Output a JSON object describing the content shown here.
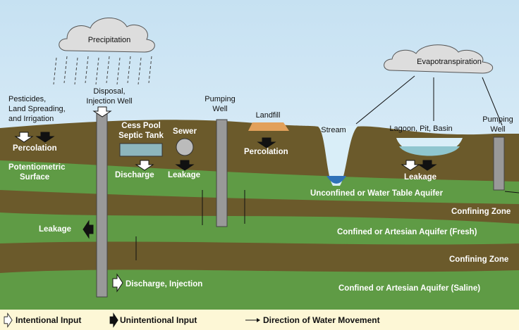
{
  "clouds": {
    "precipitation": "Precipitation",
    "evapotranspiration": "Evapotranspiration"
  },
  "surface_labels": {
    "pesticides": [
      "Pesticides,",
      "Land Spreading,",
      "and Irrigation"
    ],
    "disposal_well": [
      "Disposal,",
      "Injection Well"
    ],
    "pumping_well_1": [
      "Pumping",
      "Well"
    ],
    "landfill": "Landfill",
    "stream": "Stream",
    "lagoon": "Lagoon, Pit, Basin",
    "pumping_well_2": [
      "Pumping",
      "Well"
    ]
  },
  "subsurface_labels": {
    "cess_pool": [
      "Cess Pool",
      "Septic Tank"
    ],
    "sewer": "Sewer",
    "percolation_1": "Percolation",
    "percolation_2": "Percolation",
    "potentiometric": [
      "Potentiometric",
      "Surface"
    ],
    "discharge": "Discharge",
    "leakage_1": "Leakage",
    "leakage_2": "Leakage",
    "leakage_3": "Leakage",
    "discharge_injection": "Discharge, Injection"
  },
  "layers": [
    "Unconfined or Water Table Aquifer",
    "Confining Zone",
    "Confined or Artesian Aquifer (Fresh)",
    "Confining Zone",
    "Confined or Artesian Aquifer (Saline)"
  ],
  "legend": [
    "Intentional Input",
    "Unintentional Input",
    "Direction of Water Movement"
  ]
}
